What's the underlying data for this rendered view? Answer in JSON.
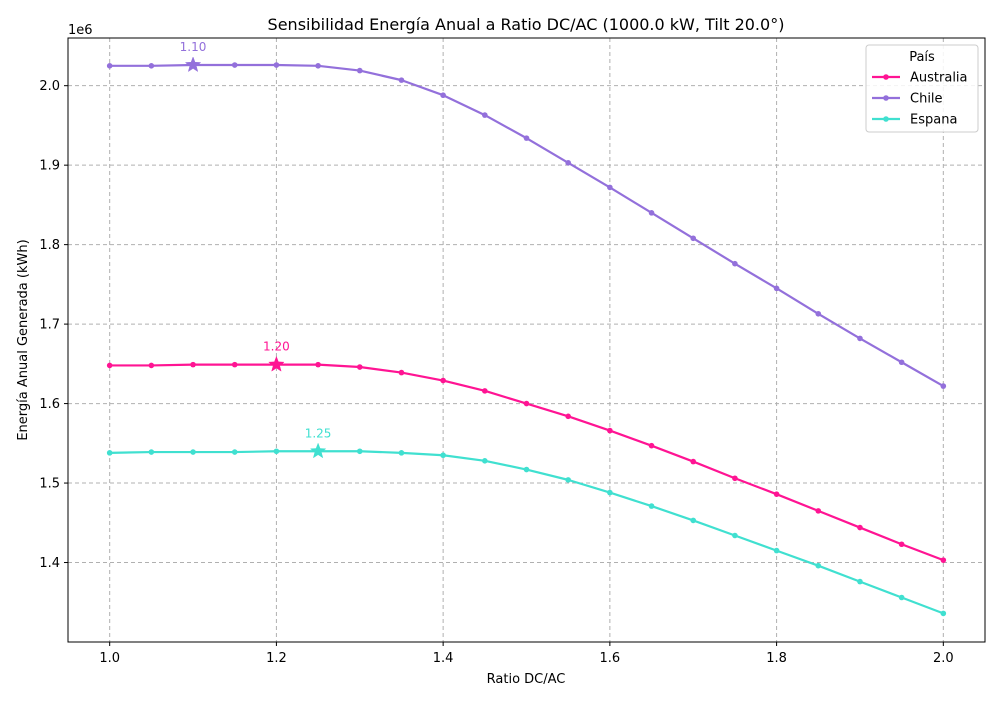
{
  "chart_data": {
    "type": "line",
    "title": "Sensibilidad Energía Anual a Ratio DC/AC (1000.0 kW, Tilt 20.0°)",
    "xlabel": "Ratio DC/AC",
    "ylabel": "Energía Anual Generada (kWh)",
    "y_offset_label": "1e6",
    "xlim": [
      0.95,
      2.05
    ],
    "ylim": [
      1.3,
      2.06
    ],
    "xticks": [
      1.0,
      1.2,
      1.4,
      1.6,
      1.8,
      2.0
    ],
    "xtick_labels": [
      "1.0",
      "1.2",
      "1.4",
      "1.6",
      "1.8",
      "2.0"
    ],
    "yticks": [
      1.4,
      1.5,
      1.6,
      1.7,
      1.8,
      1.9,
      2.0
    ],
    "ytick_labels": [
      "1.4",
      "1.5",
      "1.6",
      "1.7",
      "1.8",
      "1.9",
      "2.0"
    ],
    "grid": true,
    "legend": {
      "title": "País",
      "position": "top-right"
    },
    "x": [
      1.0,
      1.05,
      1.1,
      1.15,
      1.2,
      1.25,
      1.3,
      1.35,
      1.4,
      1.45,
      1.5,
      1.55,
      1.6,
      1.65,
      1.7,
      1.75,
      1.8,
      1.85,
      1.9,
      1.95,
      2.0
    ],
    "series": [
      {
        "name": "Australia",
        "color": "#ff1493",
        "values": [
          1.648,
          1.648,
          1.649,
          1.649,
          1.649,
          1.649,
          1.646,
          1.639,
          1.629,
          1.616,
          1.6,
          1.584,
          1.566,
          1.547,
          1.527,
          1.506,
          1.486,
          1.465,
          1.444,
          1.423,
          1.403
        ],
        "optimum": {
          "x": 1.2,
          "y": 1.649,
          "label": "1.20"
        }
      },
      {
        "name": "Chile",
        "color": "#9370db",
        "values": [
          2.025,
          2.025,
          2.026,
          2.026,
          2.026,
          2.025,
          2.019,
          2.007,
          1.988,
          1.963,
          1.934,
          1.903,
          1.872,
          1.84,
          1.808,
          1.776,
          1.745,
          1.713,
          1.682,
          1.652,
          1.622
        ],
        "optimum": {
          "x": 1.1,
          "y": 2.026,
          "label": "1.10"
        }
      },
      {
        "name": "Espana",
        "color": "#40e0d0",
        "values": [
          1.538,
          1.539,
          1.539,
          1.539,
          1.54,
          1.54,
          1.54,
          1.538,
          1.535,
          1.528,
          1.517,
          1.504,
          1.488,
          1.471,
          1.453,
          1.434,
          1.415,
          1.396,
          1.376,
          1.356,
          1.336
        ],
        "optimum": {
          "x": 1.25,
          "y": 1.54,
          "label": "1.25"
        }
      }
    ]
  }
}
